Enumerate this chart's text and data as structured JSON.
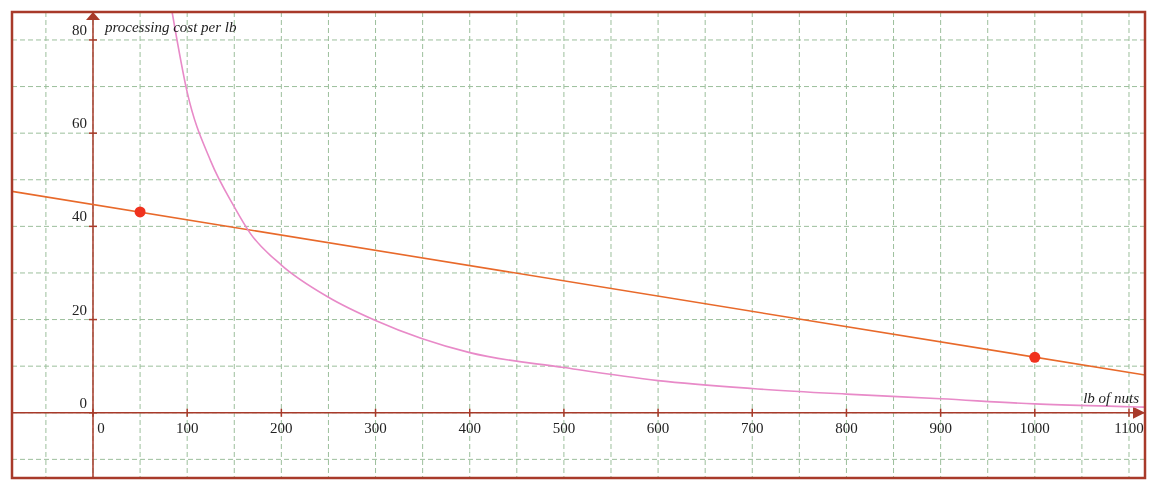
{
  "chart_data": {
    "type": "line",
    "xlabel": "lb of nuts",
    "ylabel": "processing cost per lb",
    "xlim": [
      -86,
      1117
    ],
    "ylim": [
      -14,
      86
    ],
    "xticks": [
      {
        "value": -50,
        "label": null
      },
      0,
      {
        "value": 50,
        "label": null
      },
      100,
      {
        "value": 150,
        "label": null
      },
      200,
      {
        "value": 250,
        "label": null
      },
      300,
      {
        "value": 350,
        "label": null
      },
      400,
      {
        "value": 450,
        "label": null
      },
      500,
      {
        "value": 550,
        "label": null
      },
      600,
      {
        "value": 650,
        "label": null
      },
      700,
      {
        "value": 750,
        "label": null
      },
      800,
      {
        "value": 850,
        "label": null
      },
      900,
      {
        "value": 950,
        "label": null
      },
      1000,
      {
        "value": 1050,
        "label": null
      },
      1100
    ],
    "yticks": [
      {
        "value": -10,
        "label": null
      },
      0,
      {
        "value": 10,
        "label": null
      },
      20,
      {
        "value": 30,
        "label": null
      },
      40,
      {
        "value": 50,
        "label": null
      },
      60,
      {
        "value": 70,
        "label": null
      },
      80
    ],
    "grid": true,
    "series": [
      {
        "color": "#e8692a",
        "x": [
          -86,
          1117
        ],
        "values": [
          47.5,
          8.1
        ]
      },
      {
        "color": "#e88ac8",
        "x": [
          84,
          100,
          125,
          150,
          167,
          200,
          250,
          300,
          400,
          500,
          600,
          700,
          800,
          900,
          1000,
          1100,
          1117
        ],
        "values": [
          86,
          68.8,
          54,
          44.2,
          38.5,
          31.7,
          24.8,
          19.8,
          12.9,
          9.7,
          6.9,
          5.2,
          4,
          3,
          1.9,
          1.3,
          1.2
        ]
      },
      {
        "type": "scatter",
        "color": "#f0321e",
        "marker": "circle",
        "x": [
          50,
          1000
        ],
        "values": [
          43.1,
          11.9
        ]
      }
    ]
  }
}
